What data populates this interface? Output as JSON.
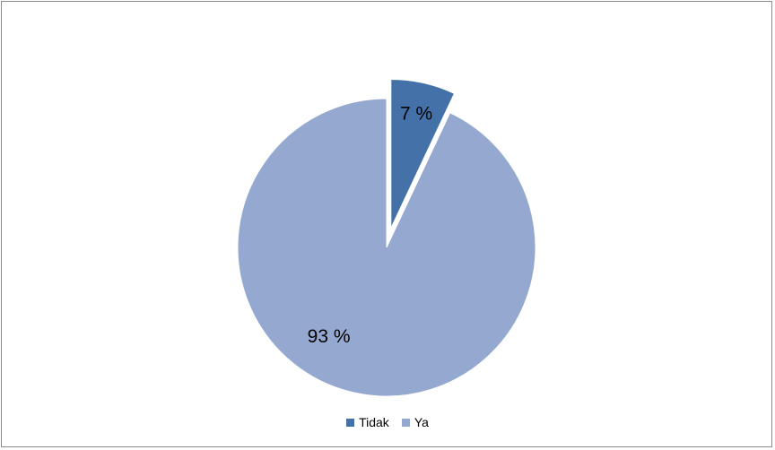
{
  "chart_data": {
    "type": "pie",
    "title": "",
    "legend_position": "bottom",
    "slices": [
      {
        "name": "Tidak",
        "value": 7,
        "label": "7 %",
        "color": "#4472a8",
        "exploded": true
      },
      {
        "name": "Ya",
        "value": 93,
        "label": "93 %",
        "color": "#95a9d0",
        "exploded": false
      }
    ]
  }
}
